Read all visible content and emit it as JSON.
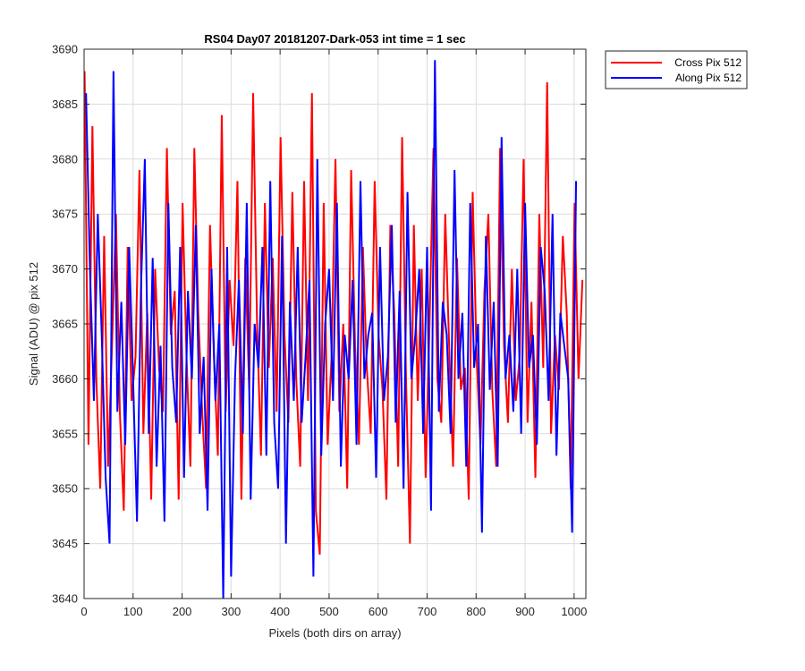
{
  "chart_data": {
    "type": "line",
    "title": "RS04 Day07 20181207-Dark-053 int time = 1 sec",
    "xlabel": "Pixels (both dirs on array)",
    "ylabel": "Signal (ADU) @ pix 512",
    "xlim": [
      0,
      1024
    ],
    "ylim": [
      3640,
      3690
    ],
    "xticks": [
      0,
      100,
      200,
      300,
      400,
      500,
      600,
      700,
      800,
      900,
      1000
    ],
    "yticks": [
      3640,
      3645,
      3650,
      3655,
      3660,
      3665,
      3670,
      3675,
      3680,
      3685,
      3690
    ],
    "grid": true,
    "legend_location": "outside-top-right",
    "series": [
      {
        "name": "Cross Pix 512",
        "color": "#ff0000",
        "x_start": 1,
        "x_step": 8,
        "values": [
          3688,
          3654,
          3683,
          3660,
          3650,
          3673,
          3652,
          3663,
          3675,
          3657,
          3648,
          3672,
          3658,
          3662,
          3679,
          3655,
          3666,
          3649,
          3670,
          3661,
          3657,
          3681,
          3664,
          3668,
          3649,
          3676,
          3662,
          3652,
          3681,
          3666,
          3657,
          3650,
          3674,
          3662,
          3653,
          3684,
          3657,
          3669,
          3663,
          3678,
          3649,
          3671,
          3659,
          3686,
          3665,
          3653,
          3676,
          3661,
          3671,
          3657,
          3682,
          3664,
          3656,
          3677,
          3660,
          3652,
          3678,
          3658,
          3686,
          3648,
          3644,
          3676,
          3654,
          3662,
          3680,
          3657,
          3665,
          3650,
          3679,
          3663,
          3654,
          3672,
          3661,
          3655,
          3678,
          3664,
          3659,
          3649,
          3674,
          3666,
          3652,
          3682,
          3660,
          3645,
          3674,
          3658,
          3670,
          3651,
          3665,
          3681,
          3660,
          3656,
          3675,
          3663,
          3652,
          3671,
          3659,
          3661,
          3649,
          3677,
          3662,
          3654,
          3668,
          3675,
          3659,
          3652,
          3681,
          3663,
          3656,
          3670,
          3658,
          3662,
          3680,
          3656,
          3667,
          3651,
          3675,
          3661,
          3687,
          3655,
          3664,
          3659,
          3673,
          3666,
          3650,
          3676,
          3660,
          3669
        ]
      },
      {
        "name": "Along Pix 512",
        "color": "#0000ff",
        "x_start": 4,
        "x_step": 8,
        "values": [
          3686,
          3670,
          3658,
          3675,
          3664,
          3651,
          3645,
          3688,
          3657,
          3667,
          3654,
          3672,
          3660,
          3647,
          3668,
          3680,
          3655,
          3671,
          3652,
          3663,
          3647,
          3676,
          3661,
          3656,
          3672,
          3651,
          3668,
          3660,
          3674,
          3655,
          3662,
          3648,
          3670,
          3658,
          3665,
          3640,
          3672,
          3642,
          3660,
          3669,
          3655,
          3676,
          3649,
          3665,
          3661,
          3672,
          3653,
          3678,
          3656,
          3650,
          3673,
          3645,
          3667,
          3658,
          3672,
          3656,
          3662,
          3669,
          3642,
          3680,
          3653,
          3665,
          3670,
          3658,
          3676,
          3652,
          3664,
          3660,
          3669,
          3654,
          3678,
          3660,
          3664,
          3666,
          3651,
          3672,
          3658,
          3662,
          3674,
          3656,
          3668,
          3650,
          3677,
          3660,
          3664,
          3670,
          3655,
          3672,
          3648,
          3689,
          3657,
          3667,
          3664,
          3655,
          3679,
          3660,
          3666,
          3652,
          3676,
          3661,
          3665,
          3646,
          3673,
          3659,
          3667,
          3652,
          3682,
          3660,
          3664,
          3657,
          3670,
          3655,
          3676,
          3661,
          3664,
          3654,
          3672,
          3668,
          3658,
          3675,
          3653,
          3666,
          3663,
          3660,
          3646,
          3678
        ]
      }
    ]
  }
}
